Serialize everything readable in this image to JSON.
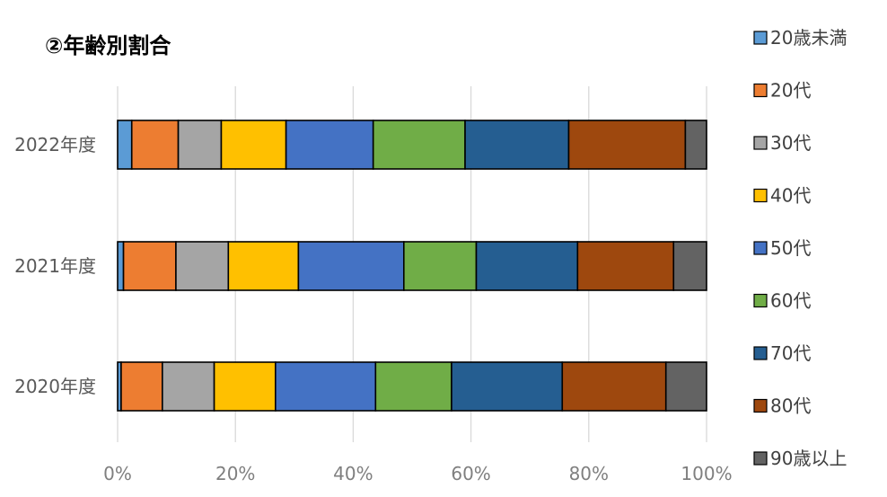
{
  "chart_data": {
    "type": "bar",
    "orientation": "horizontal",
    "stacked": "percent",
    "title": "②年齢別割合",
    "categories": [
      "2022年度",
      "2021年度",
      "2020年度"
    ],
    "x_ticks": [
      "0%",
      "20%",
      "40%",
      "60%",
      "80%",
      "100%"
    ],
    "xlim": [
      0,
      100
    ],
    "grid": true,
    "legend_position": "right",
    "series": [
      {
        "name": "20歳未満",
        "color": "#5B9BD5",
        "values": [
          2.4,
          1.0,
          0.6
        ]
      },
      {
        "name": "20代",
        "color": "#ED7D31",
        "values": [
          7.9,
          8.9,
          7.0
        ]
      },
      {
        "name": "30代",
        "color": "#A5A5A5",
        "values": [
          7.3,
          8.9,
          8.8
        ]
      },
      {
        "name": "40代",
        "color": "#FFC000",
        "values": [
          11.0,
          11.9,
          10.4
        ]
      },
      {
        "name": "50代",
        "color": "#4472C4",
        "values": [
          14.8,
          17.9,
          17.0
        ]
      },
      {
        "name": "60代",
        "color": "#70AD47",
        "values": [
          15.6,
          12.3,
          12.9
        ]
      },
      {
        "name": "70代",
        "color": "#255E91",
        "values": [
          17.6,
          17.2,
          18.8
        ]
      },
      {
        "name": "80代",
        "color": "#9E480E",
        "values": [
          19.8,
          16.3,
          17.6
        ]
      },
      {
        "name": "90歳以上",
        "color": "#636363",
        "values": [
          3.6,
          5.6,
          6.9
        ]
      }
    ]
  }
}
